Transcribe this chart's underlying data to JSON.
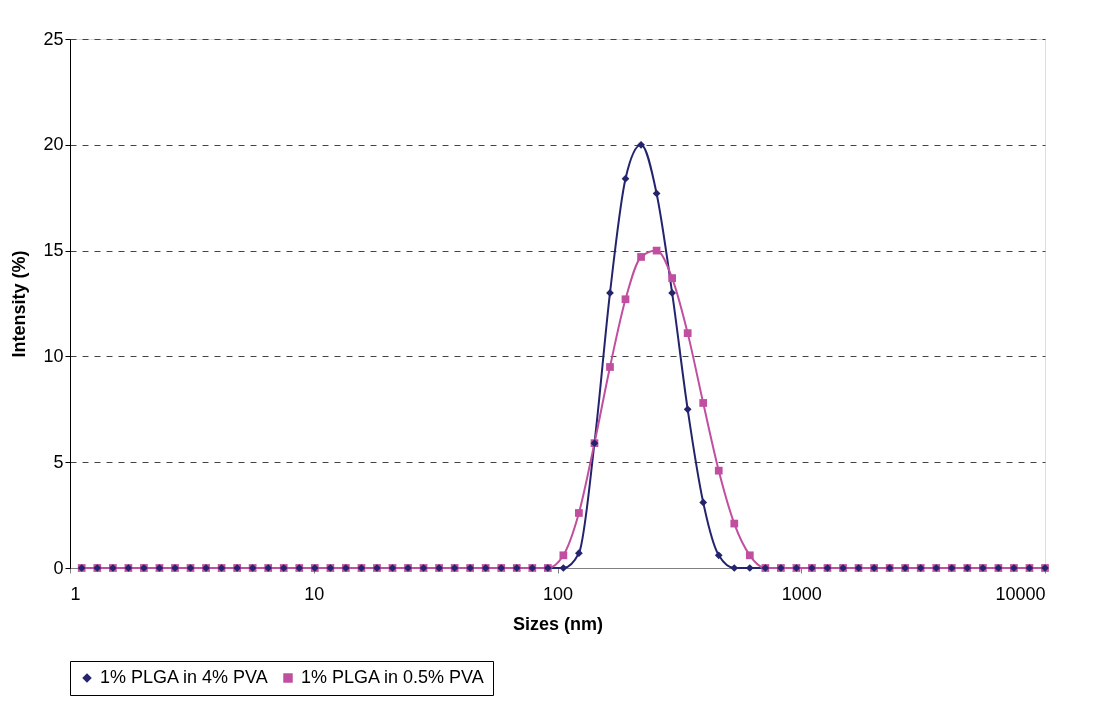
{
  "chart_data": {
    "type": "line",
    "xlabel": "Sizes (nm)",
    "ylabel": "Intensity (%)",
    "x": [
      1.117,
      1.294,
      1.499,
      1.736,
      2.01,
      2.328,
      2.696,
      3.122,
      3.615,
      4.187,
      4.849,
      5.615,
      6.503,
      7.531,
      8.721,
      10.1,
      11.7,
      13.54,
      15.69,
      18.17,
      21.04,
      24.36,
      28.21,
      32.67,
      37.84,
      43.82,
      50.75,
      58.77,
      68.06,
      78.82,
      91.28,
      105.7,
      122.4,
      141.8,
      164.2,
      190.1,
      220.2,
      255,
      295.3,
      342,
      396.1,
      458.7,
      531.2,
      615.1,
      712.4,
      825,
      955.4,
      1106,
      1281,
      1484,
      1718,
      1990,
      2305,
      2669,
      3091,
      3580,
      4145,
      4801,
      5560,
      6439,
      7456,
      8635,
      10000
    ],
    "series": [
      {
        "name": "1% PLGA in 4% PVA",
        "color": "#24246e",
        "marker": "diamond",
        "values": [
          0,
          0,
          0,
          0,
          0,
          0,
          0,
          0,
          0,
          0,
          0,
          0,
          0,
          0,
          0,
          0,
          0,
          0,
          0,
          0,
          0,
          0,
          0,
          0,
          0,
          0,
          0,
          0,
          0,
          0,
          0,
          0,
          0.7,
          5.9,
          13.0,
          18.4,
          20.0,
          17.7,
          13.0,
          7.5,
          3.1,
          0.6,
          0,
          0,
          0,
          0,
          0,
          0,
          0,
          0,
          0,
          0,
          0,
          0,
          0,
          0,
          0,
          0,
          0,
          0,
          0,
          0,
          0
        ]
      },
      {
        "name": "1% PLGA in 0.5% PVA",
        "color": "#c0509f",
        "marker": "square",
        "values": [
          0,
          0,
          0,
          0,
          0,
          0,
          0,
          0,
          0,
          0,
          0,
          0,
          0,
          0,
          0,
          0,
          0,
          0,
          0,
          0,
          0,
          0,
          0,
          0,
          0,
          0,
          0,
          0,
          0,
          0,
          0,
          0.6,
          2.6,
          5.9,
          9.5,
          12.7,
          14.7,
          15.0,
          13.7,
          11.1,
          7.8,
          4.6,
          2.1,
          0.6,
          0,
          0,
          0,
          0,
          0,
          0,
          0,
          0,
          0,
          0,
          0,
          0,
          0,
          0,
          0,
          0,
          0,
          0,
          0
        ]
      }
    ],
    "log": "x",
    "xlim": [
      1,
      10000
    ],
    "xticks": [
      1,
      10,
      100,
      1000,
      10000
    ],
    "ylim": [
      0,
      25
    ],
    "yticks": [
      0,
      5,
      10,
      15,
      20,
      25
    ],
    "grid": "y",
    "legend": "bottom",
    "line_style": "solid"
  }
}
